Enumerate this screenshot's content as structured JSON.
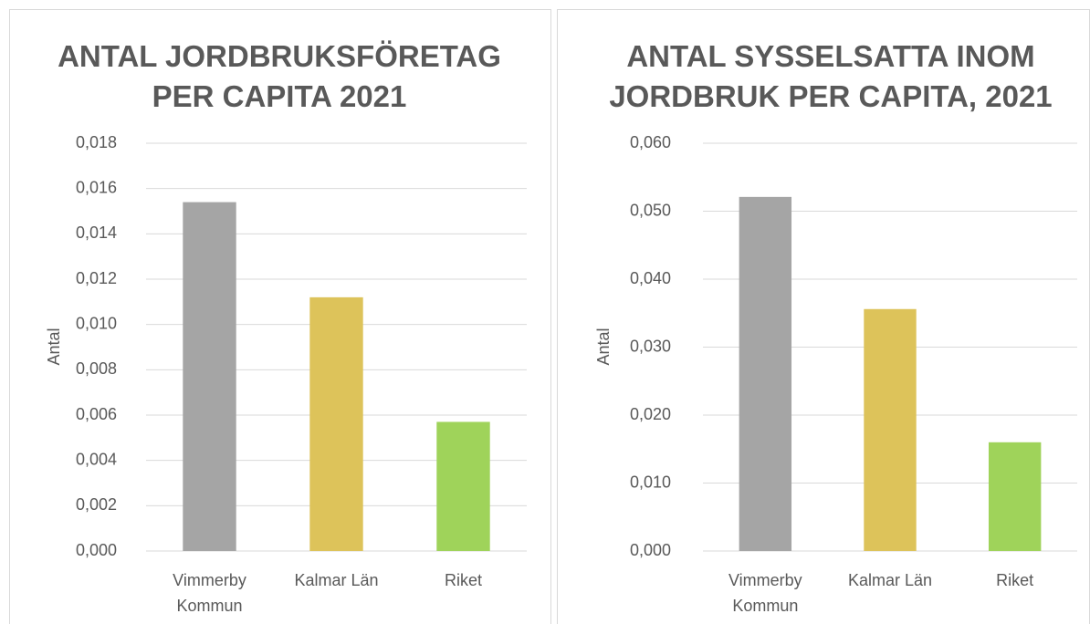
{
  "chart_data": [
    {
      "type": "bar",
      "title": "ANTAL JORDBRUKSFÖRETAG PER CAPITA 2021",
      "y_label": "Antal",
      "categories": [
        "Vimmerby Kommun",
        "Kalmar Län",
        "Riket"
      ],
      "values": [
        0.0154,
        0.0112,
        0.0057
      ],
      "colors": [
        "#a5a5a5",
        "#ddc35a",
        "#9fd35a"
      ],
      "ylim": [
        0,
        0.018
      ],
      "yticks": [
        {
          "value": 0,
          "label": "0,000"
        },
        {
          "value": 0.002,
          "label": "0,002"
        },
        {
          "value": 0.004,
          "label": "0,004"
        },
        {
          "value": 0.006,
          "label": "0,006"
        },
        {
          "value": 0.008,
          "label": "0,008"
        },
        {
          "value": 0.01,
          "label": "0,010"
        },
        {
          "value": 0.012,
          "label": "0,012"
        },
        {
          "value": 0.014,
          "label": "0,014"
        },
        {
          "value": 0.016,
          "label": "0,016"
        },
        {
          "value": 0.018,
          "label": "0,018"
        }
      ],
      "grid": true
    },
    {
      "type": "bar",
      "title": "ANTAL SYSSELSATTA INOM JORDBRUK PER CAPITA, 2021",
      "y_label": "Antal",
      "categories": [
        "Vimmerby Kommun",
        "Kalmar Län",
        "Riket"
      ],
      "values": [
        0.0521,
        0.0356,
        0.016
      ],
      "colors": [
        "#a5a5a5",
        "#ddc35a",
        "#9fd35a"
      ],
      "ylim": [
        0,
        0.06
      ],
      "yticks": [
        {
          "value": 0,
          "label": "0,000"
        },
        {
          "value": 0.01,
          "label": "0,010"
        },
        {
          "value": 0.02,
          "label": "0,020"
        },
        {
          "value": 0.03,
          "label": "0,030"
        },
        {
          "value": 0.04,
          "label": "0,040"
        },
        {
          "value": 0.05,
          "label": "0,050"
        },
        {
          "value": 0.06,
          "label": "0,060"
        }
      ],
      "grid": true
    }
  ]
}
